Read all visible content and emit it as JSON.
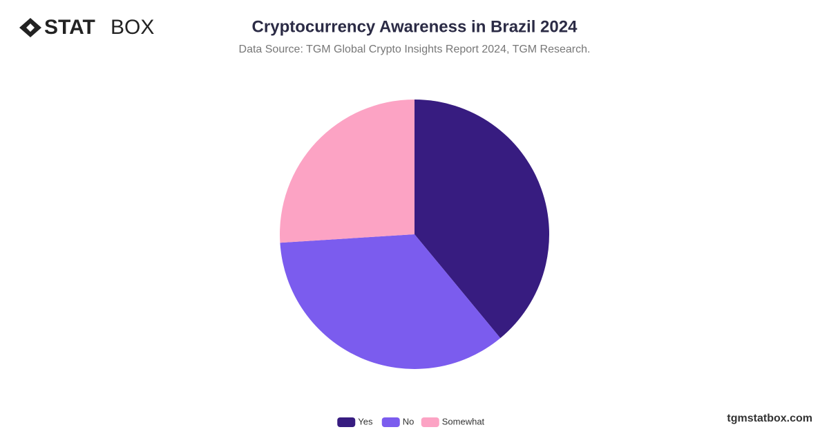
{
  "brand": {
    "logo_bold": "STAT",
    "logo_light": "BOX",
    "site": "tgmstatbox.com"
  },
  "chart_data": {
    "type": "pie",
    "title": "Cryptocurrency Awareness in Brazil 2024",
    "subtitle": "Data Source: TGM Global Crypto Insights Report 2024, TGM Research.",
    "categories": [
      "Yes",
      "No",
      "Somewhat"
    ],
    "values": [
      39,
      35,
      26
    ],
    "colors": [
      "#371c80",
      "#7b5cee",
      "#fca3c4"
    ],
    "legend": "bottom"
  }
}
